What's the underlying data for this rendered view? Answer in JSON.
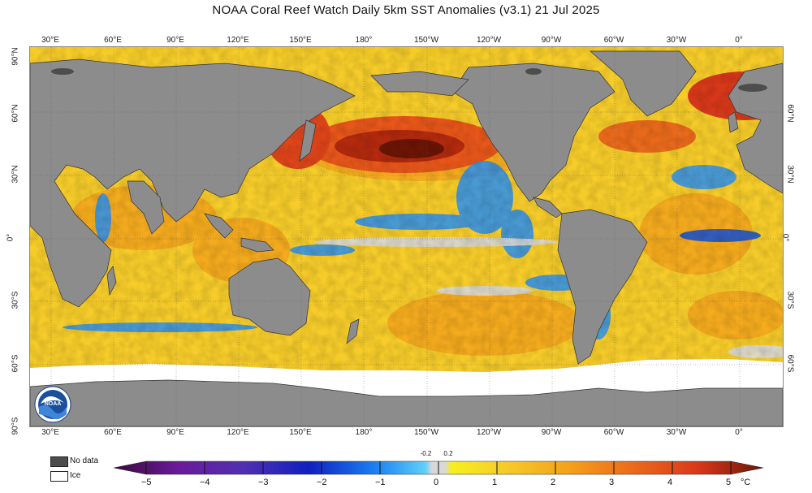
{
  "title": "NOAA Coral Reef Watch Daily 5km SST Anomalies  (v3.1)   21 Jul 2025",
  "lon_labels": [
    "30°E",
    "60°E",
    "90°E",
    "120°E",
    "150°E",
    "180°",
    "150°W",
    "120°W",
    "90°W",
    "60°W",
    "30°W",
    "0°"
  ],
  "lat_labels": [
    "90°N",
    "60°N",
    "30°N",
    "0°",
    "30°S",
    "60°S",
    "90°S"
  ],
  "lat_labels_right": [
    "60°N",
    "30°N",
    "0°",
    "30°S",
    "60°S"
  ],
  "legend": {
    "no_data_label": "No data",
    "ice_label": "Ice",
    "no_data_color": "#4d4d4d",
    "ice_color": "#ffffff",
    "land_color": "#8c8c8c",
    "unit": "°C",
    "ticks": [
      "−5",
      "−4",
      "−3",
      "−2",
      "−1",
      "0",
      "1",
      "2",
      "3",
      "4",
      "5"
    ],
    "small_ticks": [
      "-0.2",
      "0.2"
    ],
    "scale_min": -5,
    "scale_max": 5
  },
  "logo_text": "NOAA"
}
